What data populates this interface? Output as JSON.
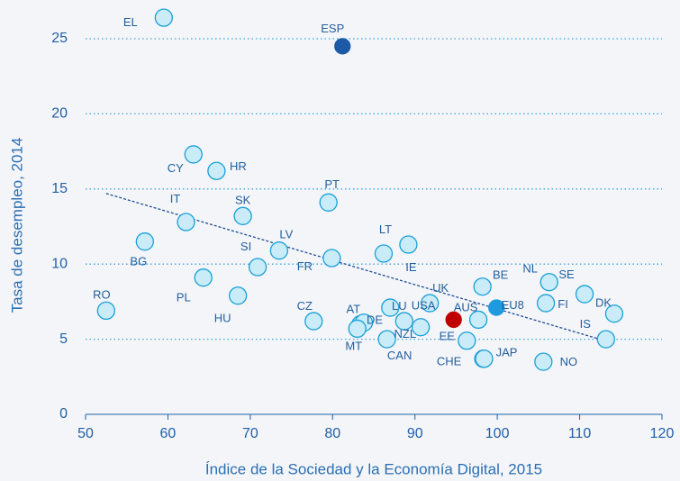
{
  "chart_data": {
    "type": "scatter",
    "xlabel": "Índice de la Sociedad y la Economía Digital, 2015",
    "ylabel": "Tasa de desempleo, 2014",
    "xlim": [
      50,
      120
    ],
    "xticks": [
      50,
      60,
      70,
      80,
      90,
      100,
      110,
      120
    ],
    "ylim": [
      0,
      27
    ],
    "yticks": [
      0,
      5,
      10,
      15,
      20,
      25
    ],
    "grid": true,
    "labels": [
      "EL",
      "ESP",
      "CY",
      "HR",
      "IT",
      "SK",
      "PT",
      "BG",
      "LV",
      "SI",
      "FR",
      "LT",
      "IE",
      "PL",
      "HU",
      "RO",
      "CZ",
      "AT",
      "DE",
      "MT",
      "LU",
      "UK",
      "NZL",
      "USA",
      "CAN",
      null,
      "AUS",
      "EE",
      "BE",
      "EU8",
      "CHE",
      "JAP",
      "NO",
      "FI",
      "NL",
      "SE",
      "DK",
      "IS"
    ],
    "x": [
      59.5,
      81.2,
      63.1,
      65.9,
      62.2,
      69.1,
      79.5,
      57.2,
      73.5,
      70.9,
      79.9,
      86.2,
      89.2,
      64.3,
      68.5,
      52.5,
      77.7,
      83.4,
      83.8,
      83.0,
      87.0,
      91.8,
      88.7,
      90.7,
      86.6,
      94.7,
      97.7,
      96.3,
      98.2,
      99.9,
      98.3,
      98.4,
      105.6,
      105.9,
      106.3,
      110.6,
      114.2,
      113.2
    ],
    "y": [
      26.4,
      24.5,
      17.3,
      16.2,
      12.8,
      13.2,
      14.1,
      11.5,
      10.9,
      9.8,
      10.4,
      10.7,
      11.3,
      9.1,
      7.9,
      6.9,
      6.2,
      6.0,
      6.1,
      5.7,
      7.1,
      7.4,
      6.2,
      5.8,
      5.0,
      6.3,
      6.3,
      4.9,
      8.5,
      7.1,
      3.7,
      3.7,
      3.5,
      7.4,
      8.8,
      8.0,
      6.7,
      5.0
    ],
    "colors": [
      "#c9ecf8",
      "#1d5aa6",
      "#c9ecf8",
      "#c9ecf8",
      "#c9ecf8",
      "#c9ecf8",
      "#c9ecf8",
      "#c9ecf8",
      "#c9ecf8",
      "#c9ecf8",
      "#c9ecf8",
      "#c9ecf8",
      "#c9ecf8",
      "#c9ecf8",
      "#c9ecf8",
      "#c9ecf8",
      "#c9ecf8",
      "#c9ecf8",
      "#c9ecf8",
      "#c9ecf8",
      "#c9ecf8",
      "#c9ecf8",
      "#c9ecf8",
      "#c9ecf8",
      "#c9ecf8",
      "#c00000",
      "#c9ecf8",
      "#c9ecf8",
      "#c9ecf8",
      "#1e9be0",
      "#c9ecf8",
      "#c9ecf8",
      "#c9ecf8",
      "#c9ecf8",
      "#c9ecf8",
      "#c9ecf8",
      "#c9ecf8",
      "#c9ecf8"
    ],
    "trendline": {
      "x": [
        52.5,
        114.3
      ],
      "y": [
        14.7,
        4.7
      ],
      "color": "#1d4f96"
    }
  }
}
